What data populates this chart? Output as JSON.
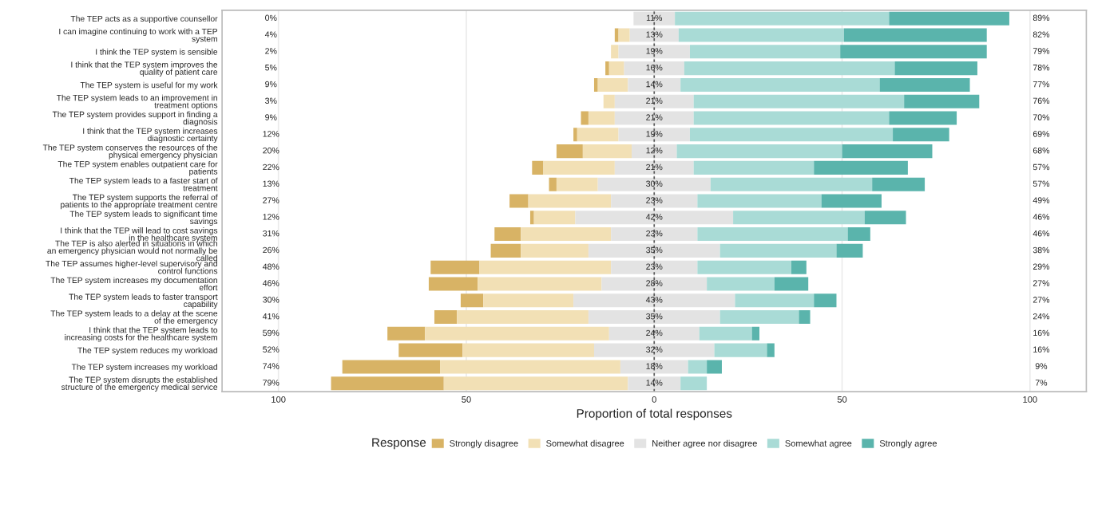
{
  "chart_data": {
    "type": "bar",
    "orientation": "horizontal",
    "xlabel": "Proportion of total responses",
    "legend_title": "Response",
    "legend": "bottom",
    "grid": "x",
    "xlim": [
      -115,
      115
    ],
    "xticks": [
      {
        "value": -100,
        "label": "100"
      },
      {
        "value": -50,
        "label": "50"
      },
      0,
      50,
      100
    ],
    "categories": [
      "The TEP acts as a supportive counsellor",
      "I can imagine continuing to work with a TEP system",
      "I think the TEP system is sensible",
      "I think that the TEP system improves the quality of patient care",
      "The TEP system is useful for my work",
      "The TEP system leads to an improvement in treatment options",
      "The TEP system provides support in finding a diagnosis",
      "I think that the TEP system increases diagnostic certainty",
      "The TEP system conserves the resources of the physical emergency physician",
      "The TEP system enables outpatient care for patients",
      "The TEP system leads to a faster start of treatment",
      "The TEP system supports the referral of patients to the appropriate treatment centre",
      "The TEP system leads to significant time savings",
      "I think that the TEP will lead to cost savings in the healthcare system",
      "The TEP is also alerted in situations in which an emergency physician would not normally be called",
      "The TEP assumes higher-level supervisory and control functions",
      "The TEP system increases my documentation effort",
      "The TEP system leads to faster transport capability",
      "The TEP system leads to a delay at the scene of the emergency",
      "I think that the TEP system leads to increasing costs for the healthcare system",
      "The TEP system reduces my workload",
      "The TEP system increases my workload",
      "The TEP system disrupts the established structure of the emergency medical service"
    ],
    "series": [
      {
        "name": "Strongly disagree",
        "color": "#d8b365",
        "values": [
          0,
          1,
          0,
          1,
          1,
          0,
          2,
          1,
          7,
          3,
          2,
          5,
          1,
          7,
          8,
          13,
          13,
          6,
          6,
          10,
          17,
          26,
          30
        ],
        "base": [
          null,
          -10.5,
          null,
          -13,
          -16,
          null,
          -19.5,
          -21.5,
          -26,
          -32.5,
          -28,
          -38.5,
          -33,
          -42.5,
          -43.5,
          -59.5,
          -60,
          -51.5,
          -58.5,
          -71,
          -68,
          -83,
          -86
        ]
      },
      {
        "name": "Somewhat disagree",
        "color": "#f2e0b5",
        "values": [
          0,
          3,
          2,
          4,
          8,
          3,
          7,
          11,
          13,
          19,
          11,
          22,
          11,
          24,
          18,
          35,
          33,
          24,
          35,
          49,
          35,
          48,
          49
        ],
        "base": [
          null,
          -9.5,
          -11.5,
          -12,
          -15,
          -13.5,
          -17.5,
          -20.5,
          -19,
          -29.5,
          -26,
          -33.5,
          -32,
          -35.5,
          -35.5,
          -46.5,
          -47,
          -45.5,
          -52.5,
          -61,
          -51,
          -57,
          -56
        ]
      },
      {
        "name": "Neither agree nor disagree",
        "color": "#e3e3e3",
        "values": [
          11,
          13,
          19,
          16,
          14,
          21,
          21,
          19,
          12,
          21,
          30,
          23,
          42,
          23,
          35,
          23,
          28,
          43,
          35,
          24,
          32,
          18,
          14
        ],
        "base": [
          -5.5,
          -6.5,
          -9.5,
          -8,
          -7,
          -10.5,
          -10.5,
          -9.5,
          -6,
          -10.5,
          -15,
          -11.5,
          -21,
          -11.5,
          -17.5,
          -11.5,
          -14,
          -21.5,
          -17.5,
          -12,
          -16,
          -9,
          -7
        ],
        "value_labels": [
          "11%",
          "13%",
          "19%",
          "16%",
          "14%",
          "21%",
          "21%",
          "19%",
          "12%",
          "21%",
          "30%",
          "23%",
          "42%",
          "23%",
          "35%",
          "23%",
          "28%",
          "43%",
          "35%",
          "24%",
          "32%",
          "18%",
          "14%"
        ]
      },
      {
        "name": "Somewhat agree",
        "color": "#a9dbd6",
        "values": [
          57,
          44,
          40,
          56,
          53,
          56,
          52,
          54,
          44,
          32,
          43,
          33,
          35,
          40,
          31,
          25,
          18,
          21,
          21,
          14,
          14,
          5,
          7
        ],
        "base": [
          5.5,
          6.5,
          9.5,
          8,
          7,
          10.5,
          10.5,
          9.5,
          6,
          10.5,
          15,
          11.5,
          21,
          11.5,
          17.5,
          11.5,
          14,
          21.5,
          17.5,
          12,
          16,
          9,
          7
        ]
      },
      {
        "name": "Strongly agree",
        "color": "#5ab4ac",
        "values": [
          32,
          38,
          39,
          22,
          24,
          20,
          18,
          15,
          24,
          25,
          14,
          16,
          11,
          6,
          7,
          4,
          9,
          6,
          3,
          2,
          2,
          4,
          0
        ],
        "base": [
          62.5,
          50.5,
          49.5,
          64,
          60,
          66.5,
          62.5,
          63.5,
          50,
          42.5,
          58,
          44.5,
          56,
          51.5,
          48.5,
          36.5,
          32,
          42.5,
          38.5,
          26,
          30,
          14,
          null
        ]
      }
    ],
    "ref_lines": [
      {
        "axis": "x",
        "value": 0,
        "color": "#555555",
        "line_style": "dashed"
      }
    ],
    "annotations": [
      "0%",
      "4%",
      "2%",
      "5%",
      "9%",
      "3%",
      "9%",
      "12%",
      "20%",
      "22%",
      "13%",
      "27%",
      "12%",
      "31%",
      "26%",
      "48%",
      "46%",
      "30%",
      "41%",
      "59%",
      "52%",
      "74%",
      "79%",
      "89%",
      "82%",
      "79%",
      "78%",
      "77%",
      "76%",
      "70%",
      "69%",
      "68%",
      "57%",
      "57%",
      "49%",
      "46%",
      "46%",
      "38%",
      "29%",
      "27%",
      "27%",
      "24%",
      "16%",
      "16%",
      "9%",
      "7%"
    ]
  }
}
